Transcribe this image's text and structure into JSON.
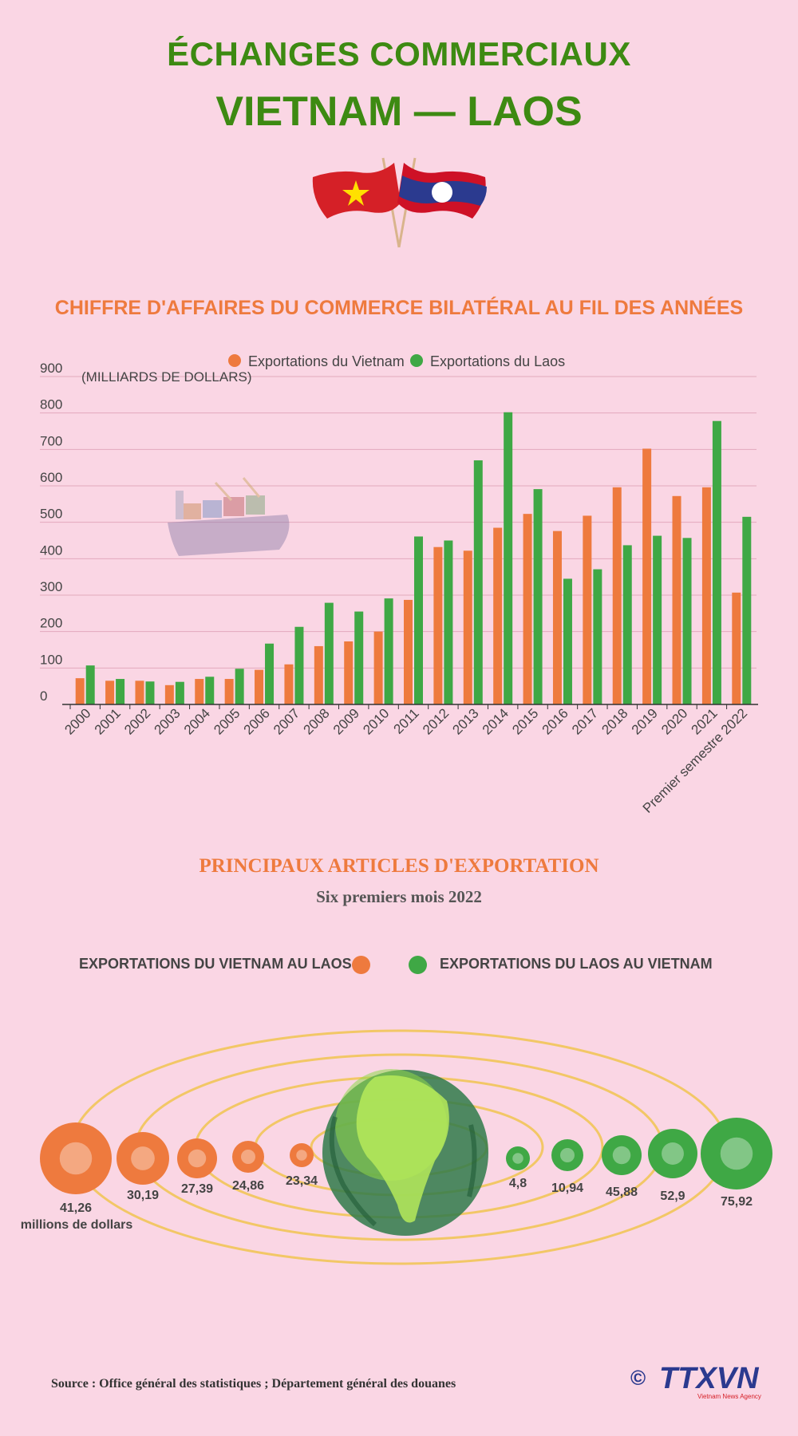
{
  "header": {
    "title_line1": "ÉCHANGES COMMERCIAUX",
    "title_line2": "VIETNAM — LAOS"
  },
  "colors": {
    "background": "#fad6e4",
    "title_green": "#3d8a12",
    "accent_orange": "#ee7a3e",
    "vietnam_series": "#ee7a3e",
    "laos_series": "#3fa845",
    "orbit_gold": "#f2c766"
  },
  "chart_data": {
    "type": "bar",
    "title": "CHIFFRE D'AFFAIRES DU COMMERCE BILATÉRAL AU FIL DES ANNÉES",
    "ylabel": "(MILLIARDS DE DOLLARS)",
    "xlabel": "",
    "ylim": [
      0,
      900
    ],
    "yticks": [
      0,
      100,
      200,
      300,
      400,
      500,
      600,
      700,
      800,
      900
    ],
    "grid": true,
    "legend_position": "top-center",
    "categories": [
      "2000",
      "2001",
      "2002",
      "2003",
      "2004",
      "2005",
      "2006",
      "2007",
      "2008",
      "2009",
      "2010",
      "2011",
      "2012",
      "2013",
      "2014",
      "2015",
      "2016",
      "2017",
      "2018",
      "2019",
      "2020",
      "2021",
      "Premier semestre 2022"
    ],
    "series": [
      {
        "name": "Exportations du Vietnam",
        "values": [
          72,
          65,
          65,
          53,
          70,
          70,
          95,
          110,
          160,
          173,
          200,
          287,
          432,
          422,
          485,
          523,
          476,
          518,
          596,
          702,
          572,
          596,
          307
        ]
      },
      {
        "name": "Exportations du Laos",
        "values": [
          107,
          70,
          63,
          62,
          76,
          98,
          167,
          213,
          279,
          255,
          291,
          461,
          450,
          670,
          802,
          591,
          345,
          371,
          437,
          463,
          457,
          778,
          515
        ]
      }
    ]
  },
  "exports": {
    "title": "PRINCIPAUX ARTICLES D'EXPORTATION",
    "subtitle": "Six premiers mois 2022",
    "legend_vietnam": "EXPORTATIONS DU VIETNAM AU LAOS",
    "legend_laos": "EXPORTATIONS DU LAOS AU VIETNAM",
    "unit": "millions de dollars",
    "vietnam_items": [
      {
        "value": "41,26",
        "icon": "steel-pipes-icon"
      },
      {
        "value": "30,19",
        "icon": "oil-can-icon"
      },
      {
        "value": "27,39",
        "icon": "machinery-icon"
      },
      {
        "value": "24,86",
        "icon": "vehicle-icon"
      },
      {
        "value": "23,34",
        "icon": "vegetables-icon"
      }
    ],
    "laos_items": [
      {
        "value": "4,8",
        "icon": "fruit-icon"
      },
      {
        "value": "10,94",
        "icon": "rubber-icon"
      },
      {
        "value": "45,88",
        "icon": "fertilizer-bag-icon"
      },
      {
        "value": "52,9",
        "icon": "agricultural-products-icon"
      },
      {
        "value": "75,92",
        "icon": "wood-planks-icon"
      }
    ]
  },
  "footer": {
    "source": "Source : Office général des statistiques ; Département général des douanes",
    "logo_symbol": "©",
    "logo_text": "TTXVN",
    "logo_subtext": "Vietnam News Agency"
  }
}
